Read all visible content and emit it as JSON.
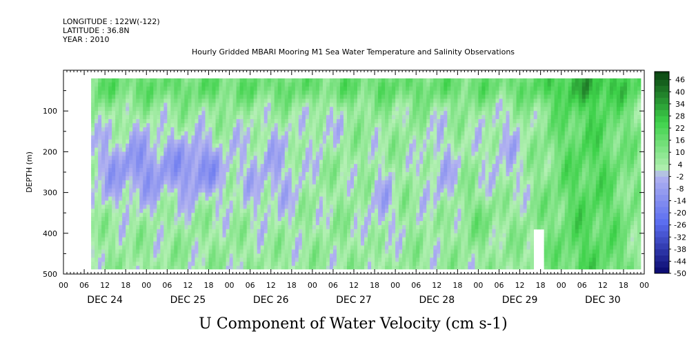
{
  "header": {
    "longitude": "LONGITUDE : 122W(-122)",
    "latitude": "LATITUDE : 36.8N",
    "year": "YEAR : 2010"
  },
  "chart_data": {
    "type": "heatmap",
    "title": "Hourly Gridded MBARI Mooring M1 Sea Water Temperature and Salinity Observations",
    "xlabel": "U Component of Water Velocity (cm s-1)",
    "ylabel": "DEPTH (m)",
    "x_axis": {
      "hour_ticks": [
        "00",
        "06",
        "12",
        "18",
        "00",
        "06",
        "12",
        "18",
        "00",
        "06",
        "12",
        "18",
        "00",
        "06",
        "12",
        "18",
        "00",
        "06",
        "12",
        "18",
        "00",
        "06",
        "12",
        "18",
        "00",
        "06",
        "12",
        "18",
        "00"
      ],
      "day_labels": [
        "DEC 24",
        "DEC 25",
        "DEC 26",
        "DEC 27",
        "DEC 28",
        "DEC 29",
        "DEC 30"
      ],
      "range_hours": [
        0,
        168
      ]
    },
    "y_axis": {
      "ticks": [
        "100",
        "200",
        "300",
        "400",
        "500"
      ],
      "range": [
        0,
        500
      ],
      "inverted": true
    },
    "data_depth_range_m": [
      20,
      488
    ],
    "data_time_range_hours": [
      8,
      167
    ],
    "colorbar": {
      "labels": [
        "46",
        "40",
        "34",
        "28",
        "22",
        "16",
        "10",
        "4",
        "-2",
        "-8",
        "-14",
        "-20",
        "-26",
        "-32",
        "-38",
        "-44",
        "-50"
      ],
      "min": -50,
      "max": 50,
      "step": 3
    },
    "colors": {
      "strong_positive": "#0a4010",
      "positive": "#3ed24a",
      "weak_positive": "#b4f0b4",
      "weak_negative": "#b4b4f0",
      "negative": "#5a6cf0",
      "strong_negative": "#08086c"
    },
    "grid": false
  }
}
